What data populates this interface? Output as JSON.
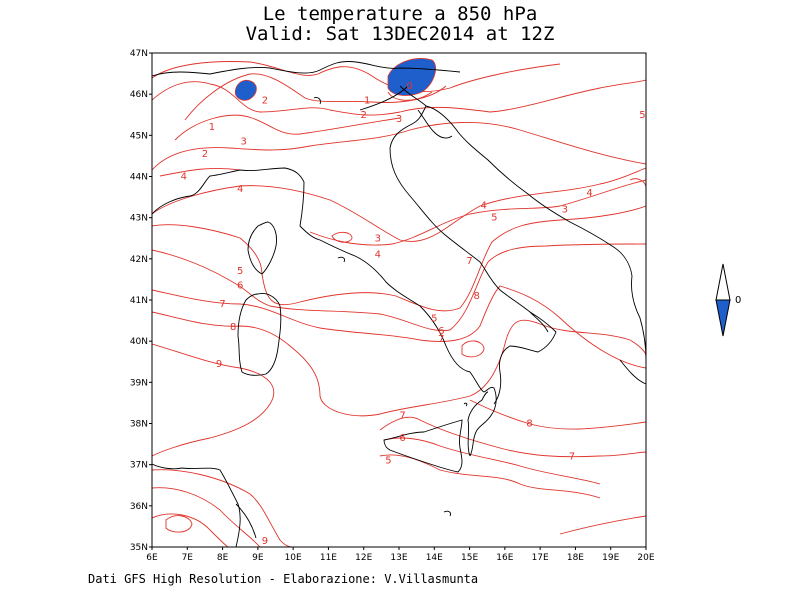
{
  "title_line1": "Le temperature a 850 hPa",
  "title_line2": "Valid: Sat 13DEC2014 at 12Z",
  "credit": "Dati GFS High Resolution - Elaborazione: V.Villasmunta",
  "x_ticks": [
    "6E",
    "7E",
    "8E",
    "9E",
    "10E",
    "11E",
    "12E",
    "13E",
    "14E",
    "15E",
    "16E",
    "17E",
    "18E",
    "19E",
    "20E"
  ],
  "y_ticks": [
    "47N",
    "46N",
    "45N",
    "44N",
    "43N",
    "42N",
    "41N",
    "40N",
    "39N",
    "38N",
    "37N",
    "36N",
    "35N"
  ],
  "contour_labels": [
    {
      "text": "0",
      "lon": 13.3,
      "lat": 46.2
    },
    {
      "text": "1",
      "lon": 7.7,
      "lat": 45.2
    },
    {
      "text": "1",
      "lon": 12.1,
      "lat": 45.85
    },
    {
      "text": "2",
      "lon": 9.2,
      "lat": 45.85
    },
    {
      "text": "2",
      "lon": 12.0,
      "lat": 45.5
    },
    {
      "text": "2",
      "lon": 7.5,
      "lat": 44.55
    },
    {
      "text": "3",
      "lon": 8.6,
      "lat": 44.85
    },
    {
      "text": "3",
      "lon": 13.0,
      "lat": 45.4
    },
    {
      "text": "3",
      "lon": 12.4,
      "lat": 42.5
    },
    {
      "text": "3",
      "lon": 17.7,
      "lat": 43.2
    },
    {
      "text": "4",
      "lon": 6.9,
      "lat": 44.0
    },
    {
      "text": "4",
      "lon": 8.5,
      "lat": 43.7
    },
    {
      "text": "4",
      "lon": 12.4,
      "lat": 42.1
    },
    {
      "text": "4",
      "lon": 15.4,
      "lat": 43.3
    },
    {
      "text": "4",
      "lon": 18.4,
      "lat": 43.6
    },
    {
      "text": "5",
      "lon": 15.7,
      "lat": 43.0
    },
    {
      "text": "5",
      "lon": 8.5,
      "lat": 41.7
    },
    {
      "text": "5",
      "lon": 14.0,
      "lat": 40.55
    },
    {
      "text": "5",
      "lon": 12.7,
      "lat": 37.1
    },
    {
      "text": "5",
      "lon": 19.9,
      "lat": 45.5
    },
    {
      "text": "6",
      "lon": 8.5,
      "lat": 41.35
    },
    {
      "text": "6",
      "lon": 14.2,
      "lat": 40.25
    },
    {
      "text": "6",
      "lon": 13.1,
      "lat": 37.65
    },
    {
      "text": "7",
      "lon": 8.0,
      "lat": 40.9
    },
    {
      "text": "7",
      "lon": 15.0,
      "lat": 41.95
    },
    {
      "text": "7",
      "lon": 14.2,
      "lat": 40.05
    },
    {
      "text": "7",
      "lon": 13.1,
      "lat": 38.2
    },
    {
      "text": "7",
      "lon": 17.9,
      "lat": 37.2
    },
    {
      "text": "8",
      "lon": 8.3,
      "lat": 40.35
    },
    {
      "text": "8",
      "lon": 15.2,
      "lat": 41.1
    },
    {
      "text": "8",
      "lon": 16.7,
      "lat": 38.0
    },
    {
      "text": "9",
      "lon": 7.9,
      "lat": 39.45
    },
    {
      "text": "9",
      "lon": 9.2,
      "lat": 35.15
    }
  ],
  "legend": {
    "label": "0"
  },
  "colors": {
    "contour": "#e0342c",
    "cold_fill": "#1f5fcc",
    "coast": "#000000"
  }
}
